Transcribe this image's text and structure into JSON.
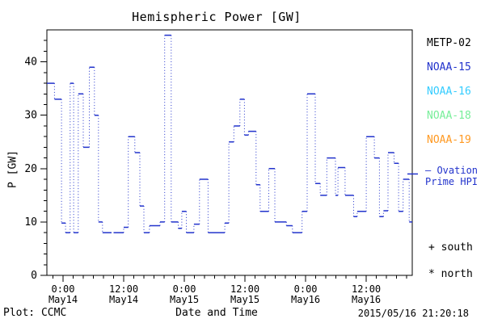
{
  "title": "Hemispheric Power [GW]",
  "legend": {
    "items": [
      {
        "label": "METP-02",
        "color": "#000000"
      },
      {
        "label": "NOAA-15",
        "color": "#2233cc"
      },
      {
        "label": "NOAA-16",
        "color": "#33ccff"
      },
      {
        "label": "NOAA-18",
        "color": "#77ee99"
      },
      {
        "label": "NOAA-19",
        "color": "#ff9922"
      }
    ]
  },
  "annotations": {
    "ovation_line1": "— Ovation",
    "ovation_line2": "Prime HPI",
    "ovation_color": "#2233cc",
    "ovation_marker_gw": 19,
    "south_label": "+ south",
    "north_label": "* north"
  },
  "footer": {
    "credit": "Plot: CCMC",
    "xaxis_title": "Date and Time",
    "timestamp": "2015/05/16 21:20:18"
  },
  "chart_data": {
    "type": "line",
    "subtype": "step-with-dotted-connectors",
    "title": "Hemispheric Power [GW]",
    "xlabel": "Date and Time",
    "ylabel": "P [GW]",
    "ylim": [
      0,
      46
    ],
    "xlim_hours_from_may14_0000": [
      -3.2,
      69.1
    ],
    "grid": false,
    "legend_position": "right-outside",
    "line_color": "#2233cc",
    "y_major_ticks": [
      0,
      10,
      20,
      30,
      40
    ],
    "y_minor_step": 2,
    "x_major_ticks": [
      {
        "hour": 0,
        "time": "0:00",
        "date": "May14"
      },
      {
        "hour": 12,
        "time": "12:00",
        "date": "May14"
      },
      {
        "hour": 24,
        "time": "0:00",
        "date": "May15"
      },
      {
        "hour": 36,
        "time": "12:00",
        "date": "May15"
      },
      {
        "hour": 48,
        "time": "0:00",
        "date": "May16"
      },
      {
        "hour": 60,
        "time": "12:00",
        "date": "May16"
      }
    ],
    "x_minor_step_hours": 2,
    "right_axis_marker_gw": 19,
    "series": [
      {
        "name": "NOAA-15",
        "color": "#2233cc",
        "segments_t1_t2_gw": [
          [
            -3.2,
            -1.7,
            36
          ],
          [
            -1.7,
            -0.3,
            33
          ],
          [
            -0.3,
            0.5,
            9.8
          ],
          [
            0.5,
            1.4,
            8
          ],
          [
            1.4,
            2.1,
            36
          ],
          [
            2.1,
            3.0,
            8
          ],
          [
            3.0,
            4.0,
            34
          ],
          [
            4.0,
            5.2,
            24
          ],
          [
            5.2,
            6.2,
            39
          ],
          [
            6.2,
            7.0,
            30
          ],
          [
            7.0,
            7.8,
            10
          ],
          [
            7.8,
            9.6,
            8
          ],
          [
            10.0,
            12.0,
            8
          ],
          [
            12.0,
            12.9,
            9
          ],
          [
            12.9,
            14.2,
            26
          ],
          [
            14.2,
            15.2,
            23
          ],
          [
            15.2,
            16.0,
            13
          ],
          [
            16.0,
            17.1,
            8
          ],
          [
            17.1,
            19.2,
            9.3
          ],
          [
            19.2,
            20.1,
            10
          ],
          [
            20.1,
            21.4,
            45
          ],
          [
            21.4,
            22.8,
            10
          ],
          [
            22.8,
            23.5,
            8.8
          ],
          [
            23.5,
            24.4,
            12
          ],
          [
            24.4,
            25.9,
            8
          ],
          [
            25.9,
            27.0,
            9.6
          ],
          [
            27.0,
            28.7,
            18
          ],
          [
            28.7,
            32.0,
            8
          ],
          [
            32.0,
            32.8,
            9.8
          ],
          [
            32.8,
            33.8,
            25
          ],
          [
            33.8,
            35.0,
            28
          ],
          [
            35.0,
            35.9,
            33
          ],
          [
            35.9,
            36.7,
            26.3
          ],
          [
            36.7,
            38.2,
            27
          ],
          [
            38.2,
            39.0,
            17
          ],
          [
            39.0,
            40.7,
            12
          ],
          [
            40.7,
            41.9,
            20
          ],
          [
            41.9,
            44.2,
            10
          ],
          [
            44.2,
            45.4,
            9.3
          ],
          [
            45.4,
            47.3,
            8
          ],
          [
            47.3,
            48.3,
            12
          ],
          [
            48.3,
            49.9,
            34
          ],
          [
            49.9,
            50.9,
            17.2
          ],
          [
            50.9,
            52.2,
            15
          ],
          [
            52.2,
            53.9,
            22
          ],
          [
            53.9,
            54.4,
            15
          ],
          [
            54.4,
            55.8,
            20.2
          ],
          [
            55.8,
            57.5,
            15
          ],
          [
            57.5,
            58.2,
            11
          ],
          [
            58.2,
            60.0,
            12
          ],
          [
            60.0,
            61.6,
            26
          ],
          [
            61.6,
            62.6,
            22
          ],
          [
            62.6,
            63.4,
            11
          ],
          [
            63.4,
            64.3,
            12.1
          ],
          [
            64.3,
            65.5,
            23
          ],
          [
            65.5,
            66.4,
            21
          ],
          [
            66.4,
            67.3,
            12
          ],
          [
            67.3,
            68.5,
            18
          ],
          [
            68.5,
            69.1,
            10
          ]
        ]
      }
    ]
  }
}
